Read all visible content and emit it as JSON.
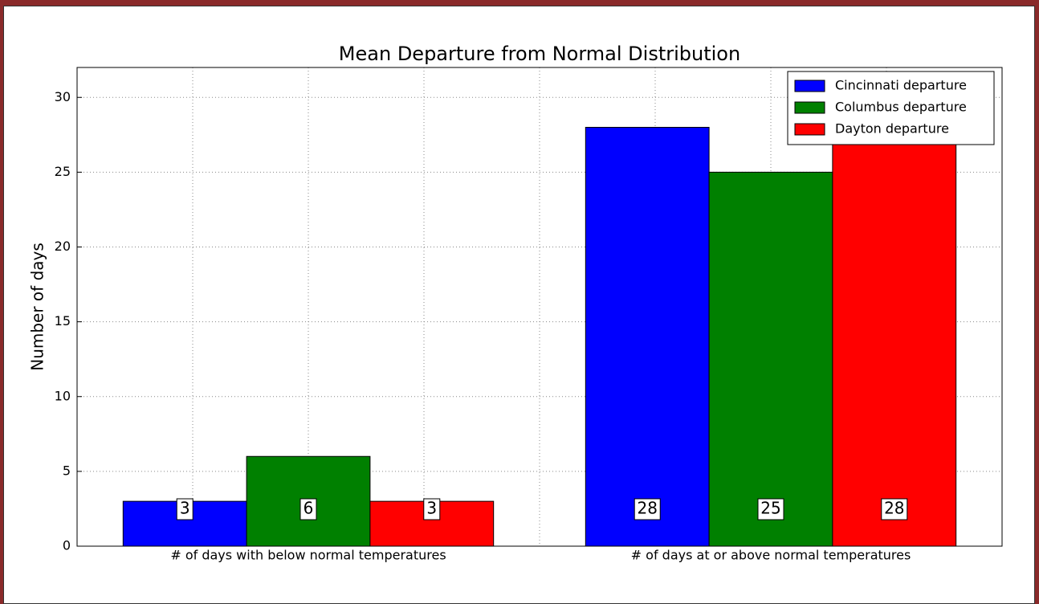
{
  "chart_data": {
    "type": "bar",
    "title": "Mean Departure from Normal Distribution",
    "ylabel": "Number of days",
    "categories": [
      "# of days with below normal temperatures",
      "# of days at or above normal temperatures"
    ],
    "series": [
      {
        "name": "Cincinnati departure",
        "color": "#0000ff",
        "values": [
          3,
          28
        ]
      },
      {
        "name": "Columbus departure",
        "color": "#008000",
        "values": [
          6,
          25
        ]
      },
      {
        "name": "Dayton departure",
        "color": "#ff0000",
        "values": [
          3,
          28
        ]
      }
    ],
    "ylim": [
      0,
      32
    ],
    "yticks": [
      0,
      5,
      10,
      15,
      20,
      25,
      30
    ],
    "grid": true,
    "legend": "upper right"
  }
}
